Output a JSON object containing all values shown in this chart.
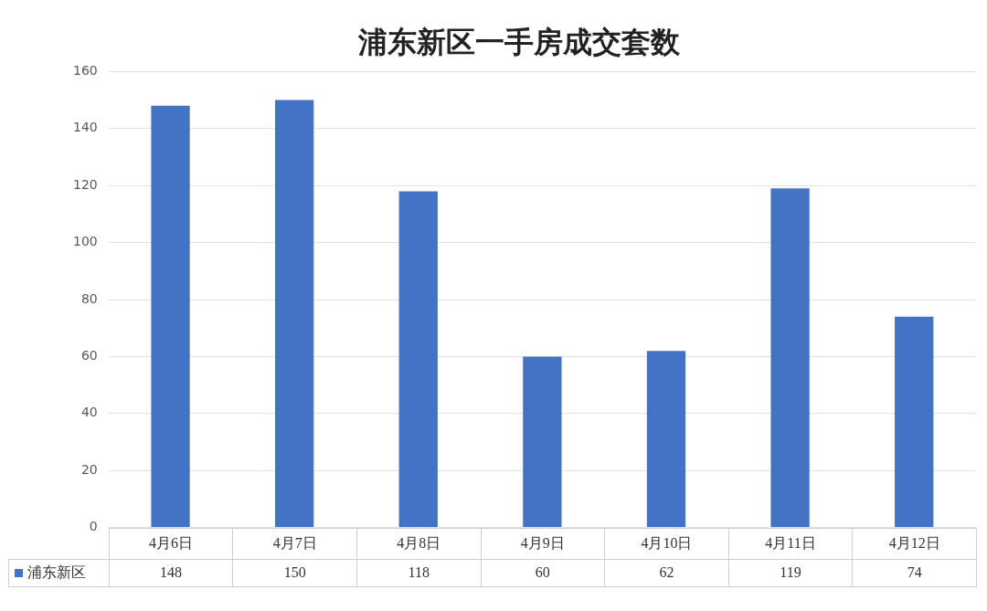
{
  "chart_data": {
    "type": "bar",
    "title": "浦东新区一手房成交套数",
    "categories": [
      "4月6日",
      "4月7日",
      "4月8日",
      "4月9日",
      "4月10日",
      "4月11日",
      "4月12日"
    ],
    "series": [
      {
        "name": "浦东新区",
        "color": "#4472c4",
        "values": [
          148,
          150,
          118,
          60,
          62,
          119,
          74
        ]
      }
    ],
    "ylim": [
      0,
      160
    ],
    "yticks": [
      0,
      20,
      40,
      60,
      80,
      100,
      120,
      140,
      160
    ],
    "grid": "y",
    "legend": "bottom",
    "data_labels": true
  }
}
